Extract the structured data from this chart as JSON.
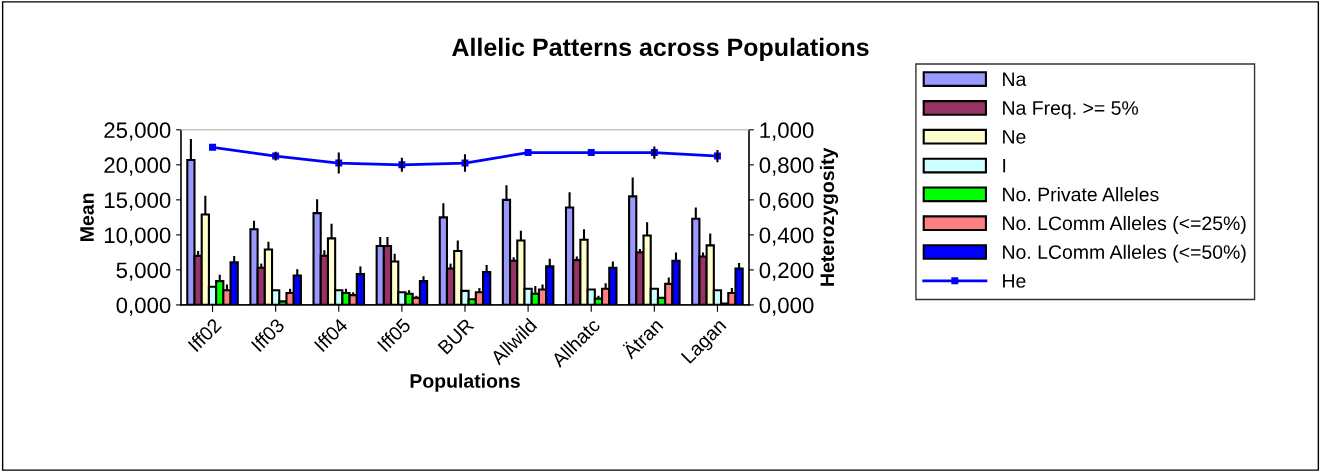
{
  "chart_data": {
    "type": "bar",
    "title": "Allelic Patterns across Populations",
    "xlabel": "Populations",
    "ylabel": "Mean",
    "y2label": "Heterozygosity",
    "categories": [
      "Iff02",
      "Iff03",
      "Iff04",
      "Iff05",
      "BUR",
      "Allwild",
      "Allhatc",
      "Ätran",
      "Lagan"
    ],
    "series": [
      {
        "name": "Na",
        "color": "#9999ff",
        "values": [
          20.7,
          10.8,
          13.1,
          8.4,
          12.5,
          15.0,
          13.9,
          15.5,
          12.3
        ],
        "errors": [
          [
            20.7,
            23.7
          ],
          [
            10.8,
            12.0
          ],
          [
            13.1,
            15.1
          ],
          [
            8.4,
            9.7
          ],
          [
            12.5,
            14.5
          ],
          [
            15.0,
            17.1
          ],
          [
            13.9,
            16.1
          ],
          [
            15.5,
            18.2
          ],
          [
            12.3,
            13.9
          ]
        ]
      },
      {
        "name": "Na Freq. >= 5%",
        "color": "#993366",
        "values": [
          7.0,
          5.3,
          7.0,
          8.4,
          5.2,
          6.3,
          6.4,
          7.5,
          6.9
        ],
        "errors": [
          [
            7.0,
            7.7
          ],
          [
            5.3,
            5.9
          ],
          [
            7.0,
            7.8
          ],
          [
            8.4,
            9.7
          ],
          [
            5.2,
            5.9
          ],
          [
            6.3,
            6.8
          ],
          [
            6.4,
            6.9
          ],
          [
            7.5,
            8.0
          ],
          [
            6.9,
            7.5
          ]
        ]
      },
      {
        "name": "Ne",
        "color": "#ffffcc",
        "values": [
          12.9,
          7.9,
          9.5,
          6.2,
          7.7,
          9.2,
          9.3,
          9.9,
          8.5
        ],
        "errors": [
          [
            12.9,
            15.6
          ],
          [
            7.9,
            9.0
          ],
          [
            9.5,
            11.6
          ],
          [
            6.2,
            7.3
          ],
          [
            7.7,
            9.2
          ],
          [
            9.2,
            10.6
          ],
          [
            9.3,
            10.8
          ],
          [
            9.9,
            11.8
          ],
          [
            8.5,
            10.2
          ]
        ]
      },
      {
        "name": "I",
        "color": "#ccffff",
        "values": [
          2.6,
          2.1,
          2.1,
          1.8,
          2.0,
          2.3,
          2.2,
          2.3,
          2.1
        ]
      },
      {
        "name": "No. Private Alleles",
        "color": "#00ff00",
        "values": [
          3.4,
          0.5,
          1.7,
          1.6,
          0.8,
          1.6,
          0.9,
          1.0,
          0.2
        ],
        "errors": [
          [
            3.4,
            4.3
          ],
          null,
          [
            1.7,
            2.3
          ],
          [
            1.6,
            2.1
          ],
          null,
          [
            1.6,
            2.7
          ],
          [
            0.9,
            1.3
          ],
          null,
          null
        ]
      },
      {
        "name": "No. LComm Alleles (<=25%)",
        "color": "#ff8080",
        "values": [
          2.1,
          1.7,
          1.4,
          1.0,
          1.8,
          2.2,
          2.3,
          3.0,
          1.7
        ],
        "errors": [
          [
            2.1,
            2.9
          ],
          [
            1.7,
            2.3
          ],
          [
            1.4,
            1.8
          ],
          [
            1.0,
            1.3
          ],
          [
            1.8,
            2.4
          ],
          [
            2.2,
            2.9
          ],
          [
            2.3,
            3.1
          ],
          [
            3.0,
            3.9
          ],
          [
            1.7,
            2.4
          ]
        ]
      },
      {
        "name": "No. LComm Alleles (<=50%)",
        "color": "#0000ff",
        "values": [
          6.1,
          4.2,
          4.4,
          3.4,
          4.7,
          5.5,
          5.3,
          6.3,
          5.2
        ],
        "errors": [
          [
            6.1,
            7.0
          ],
          [
            4.2,
            5.1
          ],
          [
            4.4,
            5.5
          ],
          [
            3.4,
            4.1
          ],
          [
            4.7,
            5.7
          ],
          [
            5.5,
            6.6
          ],
          [
            5.3,
            6.2
          ],
          [
            6.3,
            7.5
          ],
          [
            5.2,
            6.0
          ]
        ]
      },
      {
        "name": "He",
        "type": "line",
        "axis": "y2",
        "marker": "square",
        "color": "#0000ff",
        "values": [
          0.9,
          0.85,
          0.81,
          0.8,
          0.81,
          0.87,
          0.87,
          0.87,
          0.85
        ],
        "errors": [
          null,
          0.025,
          0.06,
          0.04,
          0.05,
          null,
          null,
          0.035,
          0.035
        ]
      }
    ],
    "ylim": [
      0,
      25
    ],
    "yticks": [
      {
        "value": 0,
        "label": "0,000"
      },
      {
        "value": 5,
        "label": "5,000"
      },
      {
        "value": 10,
        "label": "10,000"
      },
      {
        "value": 15,
        "label": "15,000"
      },
      {
        "value": 20,
        "label": "20,000"
      },
      {
        "value": 25,
        "label": "25,000"
      }
    ],
    "y2lim": [
      0,
      1
    ],
    "y2ticks": [
      {
        "value": 0,
        "label": "0,000"
      },
      {
        "value": 0.2,
        "label": "0,200"
      },
      {
        "value": 0.4,
        "label": "0,400"
      },
      {
        "value": 0.6,
        "label": "0,600"
      },
      {
        "value": 0.8,
        "label": "0,800"
      },
      {
        "value": 1,
        "label": "1,000"
      }
    ],
    "grid": false,
    "legend": "right"
  }
}
